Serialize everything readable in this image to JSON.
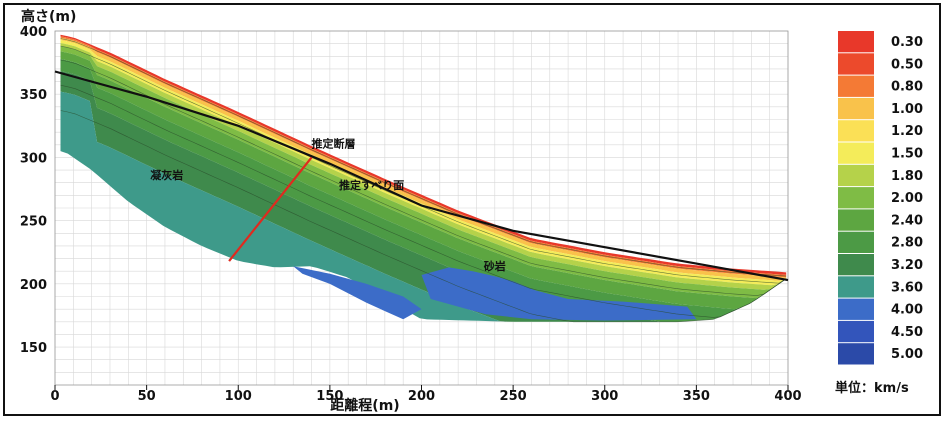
{
  "chart_data": {
    "type": "heatmap",
    "title": "",
    "ylabel": "高さ(m)",
    "xlabel": "距離程(m)",
    "xlim": [
      0,
      400
    ],
    "ylim": [
      120,
      400
    ],
    "x_ticks": [
      0,
      50,
      100,
      150,
      200,
      250,
      300,
      350,
      400
    ],
    "y_ticks": [
      150,
      200,
      250,
      300,
      350,
      400
    ],
    "grid": true,
    "legend_position": "right",
    "legend_unit": "単位：km/s",
    "legend": [
      {
        "label": "0.30",
        "color": "#e8382a"
      },
      {
        "label": "0.50",
        "color": "#ec4a2c"
      },
      {
        "label": "0.80",
        "color": "#f47a35"
      },
      {
        "label": "1.00",
        "color": "#f9c24b"
      },
      {
        "label": "1.20",
        "color": "#fbe056"
      },
      {
        "label": "1.50",
        "color": "#f4ec5a"
      },
      {
        "label": "1.80",
        "color": "#b5d24a"
      },
      {
        "label": "2.00",
        "color": "#7fbc45"
      },
      {
        "label": "2.40",
        "color": "#5da641"
      },
      {
        "label": "2.80",
        "color": "#4c9a45"
      },
      {
        "label": "3.20",
        "color": "#3f8a4c"
      },
      {
        "label": "3.60",
        "color": "#3e9a8a"
      },
      {
        "label": "4.00",
        "color": "#3c6cc8"
      },
      {
        "label": "4.50",
        "color": "#3355bb"
      },
      {
        "label": "5.00",
        "color": "#2b4aa8"
      }
    ],
    "surface_profile": {
      "x": [
        0,
        10,
        30,
        60,
        100,
        140,
        180,
        220,
        260,
        300,
        340,
        370,
        400
      ],
      "y": [
        398,
        395,
        383,
        362,
        336,
        309,
        283,
        258,
        236,
        225,
        216,
        212,
        209
      ]
    },
    "slip_surface": {
      "x": [
        0,
        50,
        100,
        150,
        200,
        250,
        300,
        350,
        400
      ],
      "y": [
        368,
        348,
        325,
        295,
        262,
        242,
        229,
        216,
        203
      ]
    },
    "fault_line": {
      "x": [
        95,
        140
      ],
      "y": [
        218,
        300
      ]
    },
    "annotations": [
      {
        "text": "推定断層",
        "x": 140,
        "y": 308
      },
      {
        "text": "推定すべり面",
        "x": 155,
        "y": 275
      },
      {
        "text": "凝灰岩",
        "x": 52,
        "y": 283
      },
      {
        "text": "砂岩",
        "x": 234,
        "y": 211
      }
    ]
  }
}
